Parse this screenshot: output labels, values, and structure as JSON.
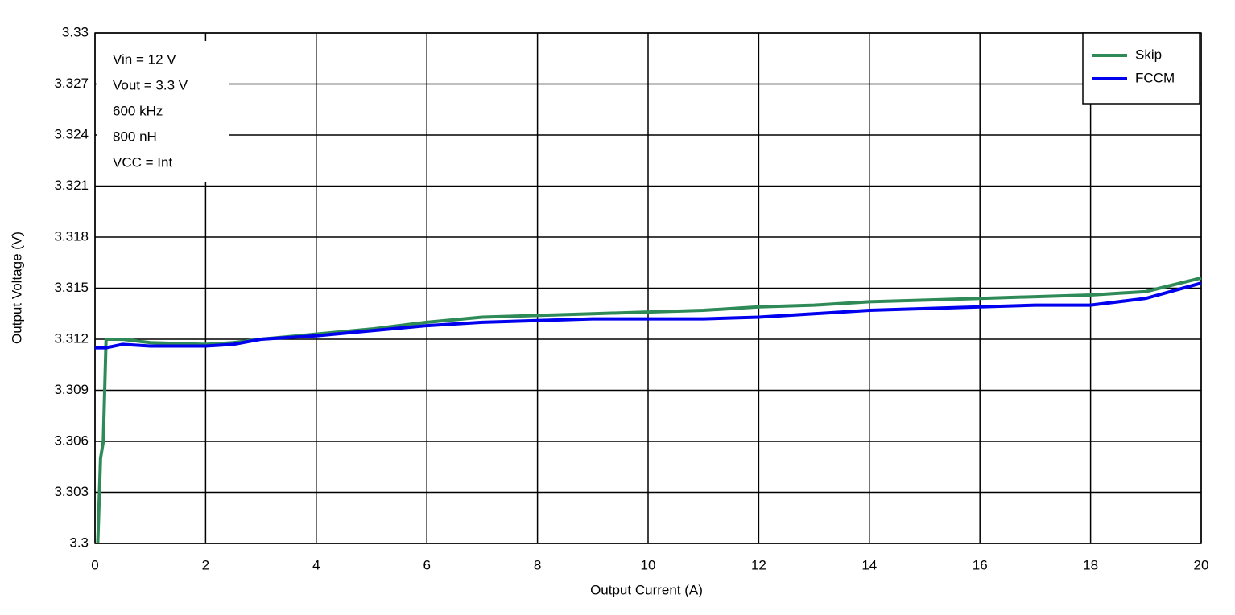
{
  "chart_data": {
    "type": "line",
    "xlabel": "Output Current (A)",
    "ylabel": "Output Voltage (V)",
    "annotations": [
      "Vin = 12 V",
      "Vout = 3.3 V",
      "600 kHz",
      "800 nH",
      "VCC = Int"
    ],
    "xlim": [
      0,
      20
    ],
    "xticks": [
      0,
      2,
      4,
      6,
      8,
      10,
      12,
      14,
      16,
      18,
      20
    ],
    "ylim": [
      3.3,
      3.33
    ],
    "yticks": [
      3.3,
      3.303,
      3.306,
      3.309,
      3.312,
      3.315,
      3.318,
      3.321,
      3.324,
      3.327,
      3.33
    ],
    "grid": true,
    "legend": "upper right",
    "series": [
      {
        "name": "Skip",
        "color": "#2e8b57",
        "x": [
          0.05,
          0.08,
          0.1,
          0.15,
          0.2,
          0.5,
          1,
          2,
          2.5,
          3,
          4,
          5,
          6,
          7,
          8,
          9,
          10,
          11,
          12,
          13,
          14,
          15,
          16,
          17,
          18,
          19,
          20
        ],
        "values": [
          3.3,
          3.303,
          3.305,
          3.306,
          3.312,
          3.312,
          3.3118,
          3.3117,
          3.3118,
          3.312,
          3.3123,
          3.3126,
          3.313,
          3.3133,
          3.3134,
          3.3135,
          3.3136,
          3.3137,
          3.3139,
          3.314,
          3.3142,
          3.3143,
          3.3144,
          3.3145,
          3.3146,
          3.3148,
          3.3156
        ]
      },
      {
        "name": "FCCM",
        "color": "#0000ee",
        "x": [
          0,
          0.2,
          0.5,
          1,
          2,
          2.5,
          3,
          4,
          5,
          6,
          7,
          8,
          9,
          10,
          11,
          12,
          13,
          14,
          15,
          16,
          17,
          18,
          19,
          20
        ],
        "values": [
          3.3115,
          3.3115,
          3.3117,
          3.3116,
          3.3116,
          3.3117,
          3.312,
          3.3122,
          3.3125,
          3.3128,
          3.313,
          3.3131,
          3.3132,
          3.3132,
          3.3132,
          3.3133,
          3.3135,
          3.3137,
          3.3138,
          3.3139,
          3.314,
          3.314,
          3.3144,
          3.3153
        ]
      }
    ]
  }
}
